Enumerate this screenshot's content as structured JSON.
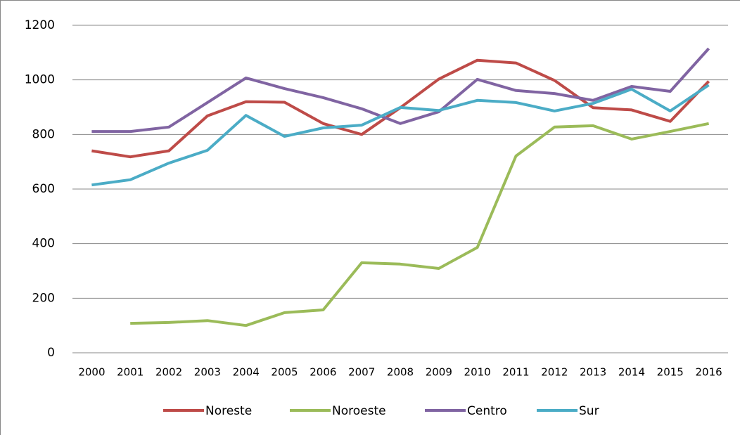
{
  "chart_data": {
    "type": "line",
    "categories": [
      "2000",
      "2001",
      "2002",
      "2003",
      "2004",
      "2005",
      "2006",
      "2007",
      "2008",
      "2009",
      "2010",
      "2011",
      "2012",
      "2013",
      "2014",
      "2015",
      "2016"
    ],
    "series": [
      {
        "name": "Noreste",
        "color": "#be4b48",
        "values": [
          740,
          718,
          740,
          868,
          920,
          918,
          840,
          800,
          898,
          1003,
          1072,
          1062,
          998,
          898,
          890,
          848,
          995
        ]
      },
      {
        "name": "Noroeste",
        "color": "#9bbb59",
        "values": [
          null,
          108,
          111,
          118,
          100,
          147,
          157,
          330,
          325,
          309,
          386,
          721,
          827,
          832,
          783,
          811,
          840
        ]
      },
      {
        "name": "Centro",
        "color": "#8064a2",
        "values": [
          811,
          811,
          827,
          917,
          1007,
          968,
          935,
          894,
          840,
          883,
          1002,
          961,
          950,
          925,
          976,
          958,
          1115
        ]
      },
      {
        "name": "Sur",
        "color": "#4bacc6",
        "values": [
          615,
          634,
          695,
          742,
          870,
          793,
          824,
          834,
          899,
          888,
          925,
          917,
          886,
          914,
          966,
          886,
          981
        ]
      }
    ],
    "ylim": [
      0,
      1200
    ],
    "yticks": [
      0,
      200,
      400,
      600,
      800,
      1000,
      1200
    ],
    "grid": true,
    "legend": "bottom"
  }
}
